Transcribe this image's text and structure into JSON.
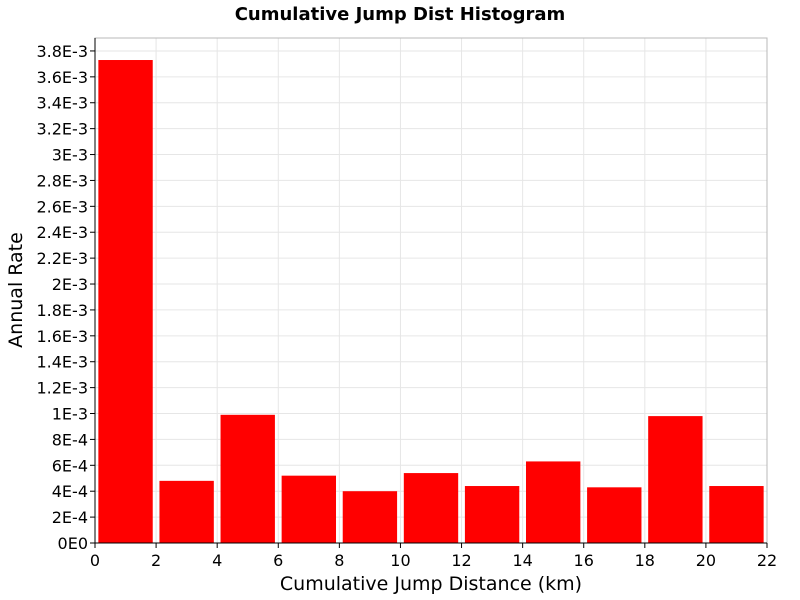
{
  "chart_data": {
    "type": "bar",
    "title": "Cumulative Jump Dist Histogram",
    "xlabel": "Cumulative Jump Distance (km)",
    "ylabel": "Annual Rate",
    "xlim": [
      0,
      22
    ],
    "ylim": [
      0,
      0.0039
    ],
    "x_ticks": [
      0,
      2,
      4,
      6,
      8,
      10,
      12,
      14,
      16,
      18,
      20,
      22
    ],
    "y_ticks": [
      0,
      0.0002,
      0.0004,
      0.0006,
      0.0008,
      0.001,
      0.0012,
      0.0014,
      0.0016,
      0.0018,
      0.002,
      0.0022,
      0.0024,
      0.0026,
      0.0028,
      0.003,
      0.0032,
      0.0034,
      0.0036,
      0.0038
    ],
    "y_tick_labels": [
      "0E0",
      "2E-4",
      "4E-4",
      "6E-4",
      "8E-4",
      "1E-3",
      "1.2E-3",
      "1.4E-3",
      "1.6E-3",
      "1.8E-3",
      "2E-3",
      "2.2E-3",
      "2.4E-3",
      "2.6E-3",
      "2.8E-3",
      "3E-3",
      "3.2E-3",
      "3.4E-3",
      "3.6E-3",
      "3.8E-3"
    ],
    "bin_width": 2,
    "bins": [
      {
        "x": 1,
        "value": 0.00373
      },
      {
        "x": 3,
        "value": 0.00048
      },
      {
        "x": 5,
        "value": 0.00099
      },
      {
        "x": 7,
        "value": 0.00052
      },
      {
        "x": 9,
        "value": 0.0004
      },
      {
        "x": 11,
        "value": 0.00054
      },
      {
        "x": 13,
        "value": 0.00044
      },
      {
        "x": 15,
        "value": 0.00063
      },
      {
        "x": 17,
        "value": 0.00043
      },
      {
        "x": 19,
        "value": 0.00098
      },
      {
        "x": 21,
        "value": 0.00044
      }
    ],
    "bar_color": "#ff0000",
    "grid": true,
    "legend": "none"
  }
}
